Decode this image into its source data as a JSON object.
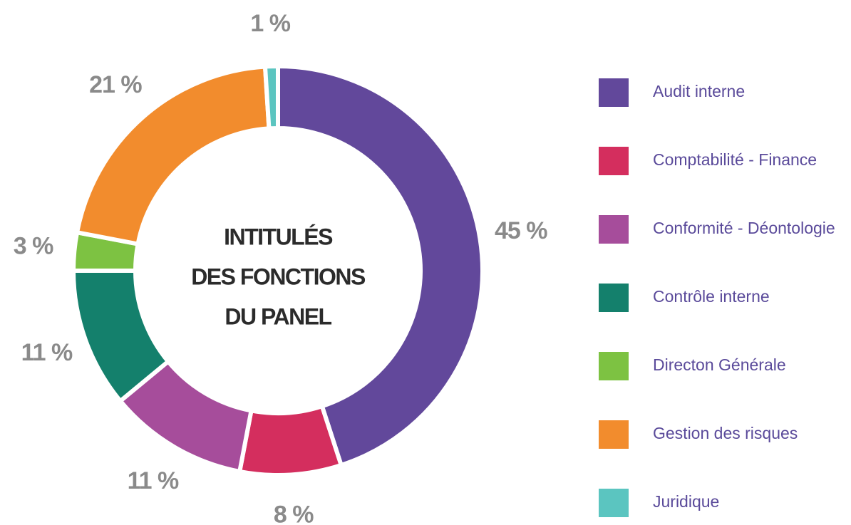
{
  "chart_data": {
    "type": "donut",
    "title": [
      "INTITULÉS",
      "DES FONCTIONS",
      "DU PANEL"
    ],
    "categories": [
      "Audit interne",
      "Comptabilité - Finance",
      "Conformité - Déontologie",
      "Contrôle interne",
      "Directon Générale",
      "Gestion des risques",
      "Juridique"
    ],
    "values": [
      45,
      8,
      11,
      11,
      3,
      21,
      1
    ],
    "value_labels": [
      "45 %",
      "8 %",
      "11 %",
      "11 %",
      "3 %",
      "21 %",
      "1 %"
    ],
    "colors": [
      "#62489b",
      "#d42e5e",
      "#a64d9b",
      "#14806c",
      "#7dc242",
      "#f28c2d",
      "#5bc5c0"
    ],
    "legend": "right"
  }
}
